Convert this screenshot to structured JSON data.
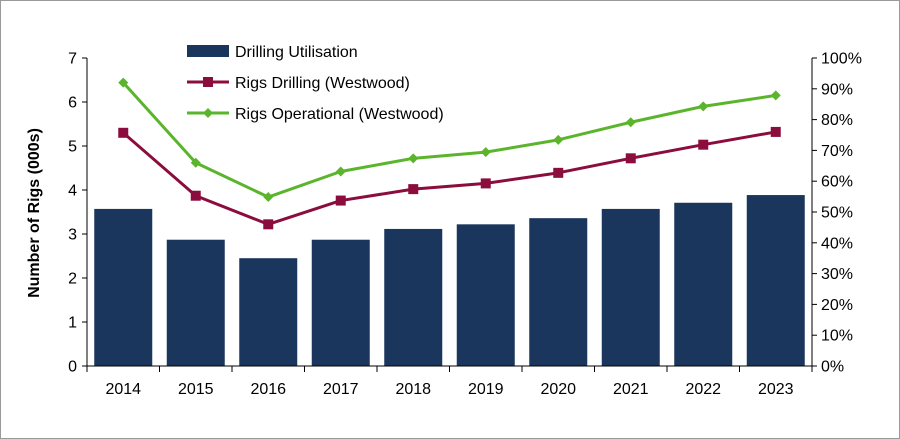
{
  "chart_data": {
    "type": "bar",
    "categories": [
      "2014",
      "2015",
      "2016",
      "2017",
      "2018",
      "2019",
      "2020",
      "2021",
      "2022",
      "2023"
    ],
    "ylabel": "Number of Rigs (000s)",
    "y_ticks": [
      "0",
      "1",
      "2",
      "3",
      "4",
      "5",
      "6",
      "7"
    ],
    "ylim": [
      0,
      7
    ],
    "y2_ticks": [
      "0%",
      "10%",
      "20%",
      "30%",
      "40%",
      "50%",
      "60%",
      "70%",
      "80%",
      "90%",
      "100%"
    ],
    "y2lim": [
      0,
      100
    ],
    "grid": false,
    "legend_position": "top-center",
    "series": [
      {
        "name": "Drilling Utilisation",
        "type": "bar",
        "axis": "right",
        "color": "#1b365d",
        "values": [
          51,
          41,
          35,
          41,
          44.5,
          46,
          48,
          51,
          53,
          55.5
        ]
      },
      {
        "name": "Rigs Drilling (Westwood)",
        "type": "line",
        "axis": "left",
        "color": "#8b0d3d",
        "marker": "square",
        "values": [
          5.3,
          3.87,
          3.22,
          3.76,
          4.02,
          4.15,
          4.39,
          4.72,
          5.03,
          5.32
        ]
      },
      {
        "name": "Rigs Operational (Westwood)",
        "type": "line",
        "axis": "left",
        "color": "#5ab52c",
        "marker": "diamond",
        "values": [
          6.44,
          4.62,
          3.84,
          4.42,
          4.72,
          4.86,
          5.14,
          5.54,
          5.9,
          6.15
        ]
      }
    ]
  }
}
